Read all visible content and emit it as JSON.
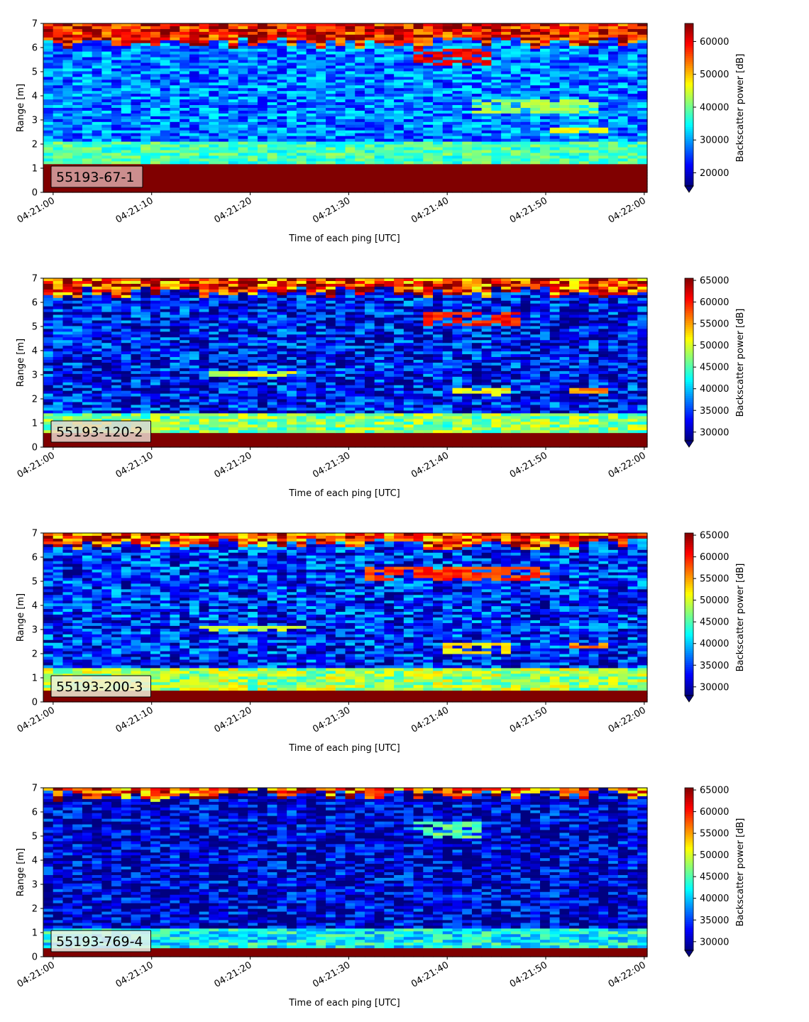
{
  "chart_data": [
    {
      "type": "heatmap",
      "panel_label": "55193-67-1",
      "xlabel": "Time of each ping [UTC]",
      "ylabel": "Range [m]",
      "colorbar_label": "Backscatter power [dB]",
      "colormap": "jet",
      "xlim": [
        "04:21:00",
        "04:22:00"
      ],
      "xticks": [
        "04:21:00",
        "04:21:10",
        "04:21:20",
        "04:21:30",
        "04:21:40",
        "04:21:50",
        "04:22:00"
      ],
      "ylim": [
        0,
        7
      ],
      "yticks": [
        0,
        1,
        2,
        3,
        4,
        5,
        6,
        7
      ],
      "clim": [
        16000,
        65500
      ],
      "cticks": [
        20000,
        30000,
        40000,
        50000,
        60000
      ],
      "colorbar_extend": "min",
      "label_box_color": "#d9a7a7",
      "profile": {
        "bottom_strong_top_m": 1.2,
        "noise_level": 28000,
        "noise_floor_level": 36000,
        "surface_start_m": 6.2,
        "features": [
          {
            "t0": 36,
            "t1": 44,
            "r0": 5.2,
            "r1": 5.9,
            "level": 60000
          },
          {
            "t0": 42,
            "t1": 55,
            "r0": 3.3,
            "r1": 3.9,
            "level": 42000
          },
          {
            "t0": 50,
            "t1": 56,
            "r0": 2.5,
            "r1": 2.7,
            "level": 48000
          }
        ]
      }
    },
    {
      "type": "heatmap",
      "panel_label": "55193-120-2",
      "xlabel": "Time of each ping [UTC]",
      "ylabel": "Range [m]",
      "colorbar_label": "Backscatter power [dB]",
      "colormap": "jet",
      "xlim": [
        "04:21:00",
        "04:22:00"
      ],
      "xticks": [
        "04:21:00",
        "04:21:10",
        "04:21:20",
        "04:21:30",
        "04:21:40",
        "04:21:50",
        "04:22:00"
      ],
      "ylim": [
        0,
        7
      ],
      "yticks": [
        0,
        1,
        2,
        3,
        4,
        5,
        6,
        7
      ],
      "clim": [
        28000,
        65500
      ],
      "cticks": [
        30000,
        35000,
        40000,
        45000,
        50000,
        55000,
        60000,
        65000
      ],
      "colorbar_extend": "min",
      "label_box_color": "#e7d7cc",
      "profile": {
        "bottom_strong_top_m": 0.55,
        "noise_level": 33000,
        "noise_floor_level": 45000,
        "surface_start_m": 6.4,
        "features": [
          {
            "t0": 37,
            "t1": 47,
            "r0": 5.0,
            "r1": 5.6,
            "level": 60000
          },
          {
            "t0": 40,
            "t1": 46,
            "r0": 2.1,
            "r1": 2.5,
            "level": 52000
          },
          {
            "t0": 52,
            "t1": 56,
            "r0": 2.2,
            "r1": 2.5,
            "level": 56000
          },
          {
            "t0": 15,
            "t1": 24,
            "r0": 2.9,
            "r1": 3.2,
            "level": 50000
          }
        ]
      }
    },
    {
      "type": "heatmap",
      "panel_label": "55193-200-3",
      "xlabel": "Time of each ping [UTC]",
      "ylabel": "Range [m]",
      "colorbar_label": "Backscatter power [dB]",
      "colormap": "jet",
      "xlim": [
        "04:21:00",
        "04:22:00"
      ],
      "xticks": [
        "04:21:00",
        "04:21:10",
        "04:21:20",
        "04:21:30",
        "04:21:40",
        "04:21:50",
        "04:22:00"
      ],
      "ylim": [
        0,
        7
      ],
      "yticks": [
        0,
        1,
        2,
        3,
        4,
        5,
        6,
        7
      ],
      "clim": [
        28000,
        65500
      ],
      "cticks": [
        30000,
        35000,
        40000,
        45000,
        50000,
        55000,
        60000,
        65000
      ],
      "colorbar_extend": "min",
      "label_box_color": "#f1f0d8",
      "profile": {
        "bottom_strong_top_m": 0.45,
        "noise_level": 34000,
        "noise_floor_level": 46000,
        "surface_start_m": 6.5,
        "features": [
          {
            "t0": 31,
            "t1": 50,
            "r0": 5.0,
            "r1": 5.6,
            "level": 59000
          },
          {
            "t0": 39,
            "t1": 46,
            "r0": 2.0,
            "r1": 2.5,
            "level": 52000
          },
          {
            "t0": 52,
            "t1": 56,
            "r0": 2.2,
            "r1": 2.5,
            "level": 56000
          },
          {
            "t0": 14,
            "t1": 25,
            "r0": 2.9,
            "r1": 3.2,
            "level": 50000
          }
        ]
      }
    },
    {
      "type": "heatmap",
      "panel_label": "55193-769-4",
      "xlabel": "Time of each ping [UTC]",
      "ylabel": "Range [m]",
      "colorbar_label": "Backscatter power [dB]",
      "colormap": "jet",
      "xlim": [
        "04:21:00",
        "04:22:00"
      ],
      "xticks": [
        "04:21:00",
        "04:21:10",
        "04:21:20",
        "04:21:30",
        "04:21:40",
        "04:21:50",
        "04:22:00"
      ],
      "ylim": [
        0,
        7
      ],
      "yticks": [
        0,
        1,
        2,
        3,
        4,
        5,
        6,
        7
      ],
      "clim": [
        28000,
        65500
      ],
      "cticks": [
        30000,
        35000,
        40000,
        45000,
        50000,
        55000,
        60000,
        65000
      ],
      "colorbar_extend": "min",
      "label_box_color": "#eaf2ea",
      "profile": {
        "bottom_strong_top_m": 0.3,
        "noise_level": 31000,
        "noise_floor_level": 40000,
        "surface_start_m": 6.7,
        "features": [
          {
            "t0": 36,
            "t1": 43,
            "r0": 4.9,
            "r1": 5.6,
            "level": 46000
          }
        ]
      }
    }
  ]
}
